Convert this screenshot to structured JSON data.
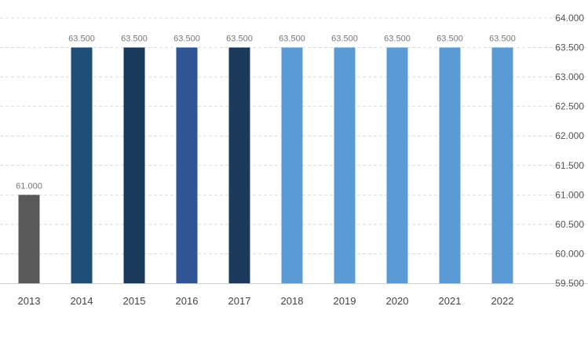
{
  "chart_data": {
    "type": "bar",
    "categories": [
      "2013",
      "2014",
      "2015",
      "2016",
      "2017",
      "2018",
      "2019",
      "2020",
      "2021",
      "2022"
    ],
    "values": [
      61.0,
      63.5,
      63.5,
      63.5,
      63.5,
      63.5,
      63.5,
      63.5,
      63.5,
      63.5
    ],
    "data_labels": [
      "61.000",
      "63.500",
      "63.500",
      "63.500",
      "63.500",
      "63.500",
      "63.500",
      "63.500",
      "63.500",
      "63.500"
    ],
    "bar_colors": [
      "#595959",
      "#1f4e79",
      "#1a3a5c",
      "#2f5597",
      "#1b3a5e",
      "#5b9bd5",
      "#5b9bd5",
      "#5b9bd5",
      "#5b9bd5",
      "#5b9bd5"
    ],
    "y_ticks": [
      59.5,
      60.0,
      60.5,
      61.0,
      61.5,
      62.0,
      62.5,
      63.0,
      63.5,
      64.0
    ],
    "y_tick_labels": [
      "59.500",
      "60.000",
      "60.500",
      "61.000",
      "61.500",
      "62.000",
      "62.500",
      "63.000",
      "63.500",
      "64.000"
    ],
    "ylim": [
      59.5,
      64.0
    ],
    "y_axis_side": "right",
    "grid": true,
    "title": "",
    "xlabel": "",
    "ylabel": ""
  }
}
